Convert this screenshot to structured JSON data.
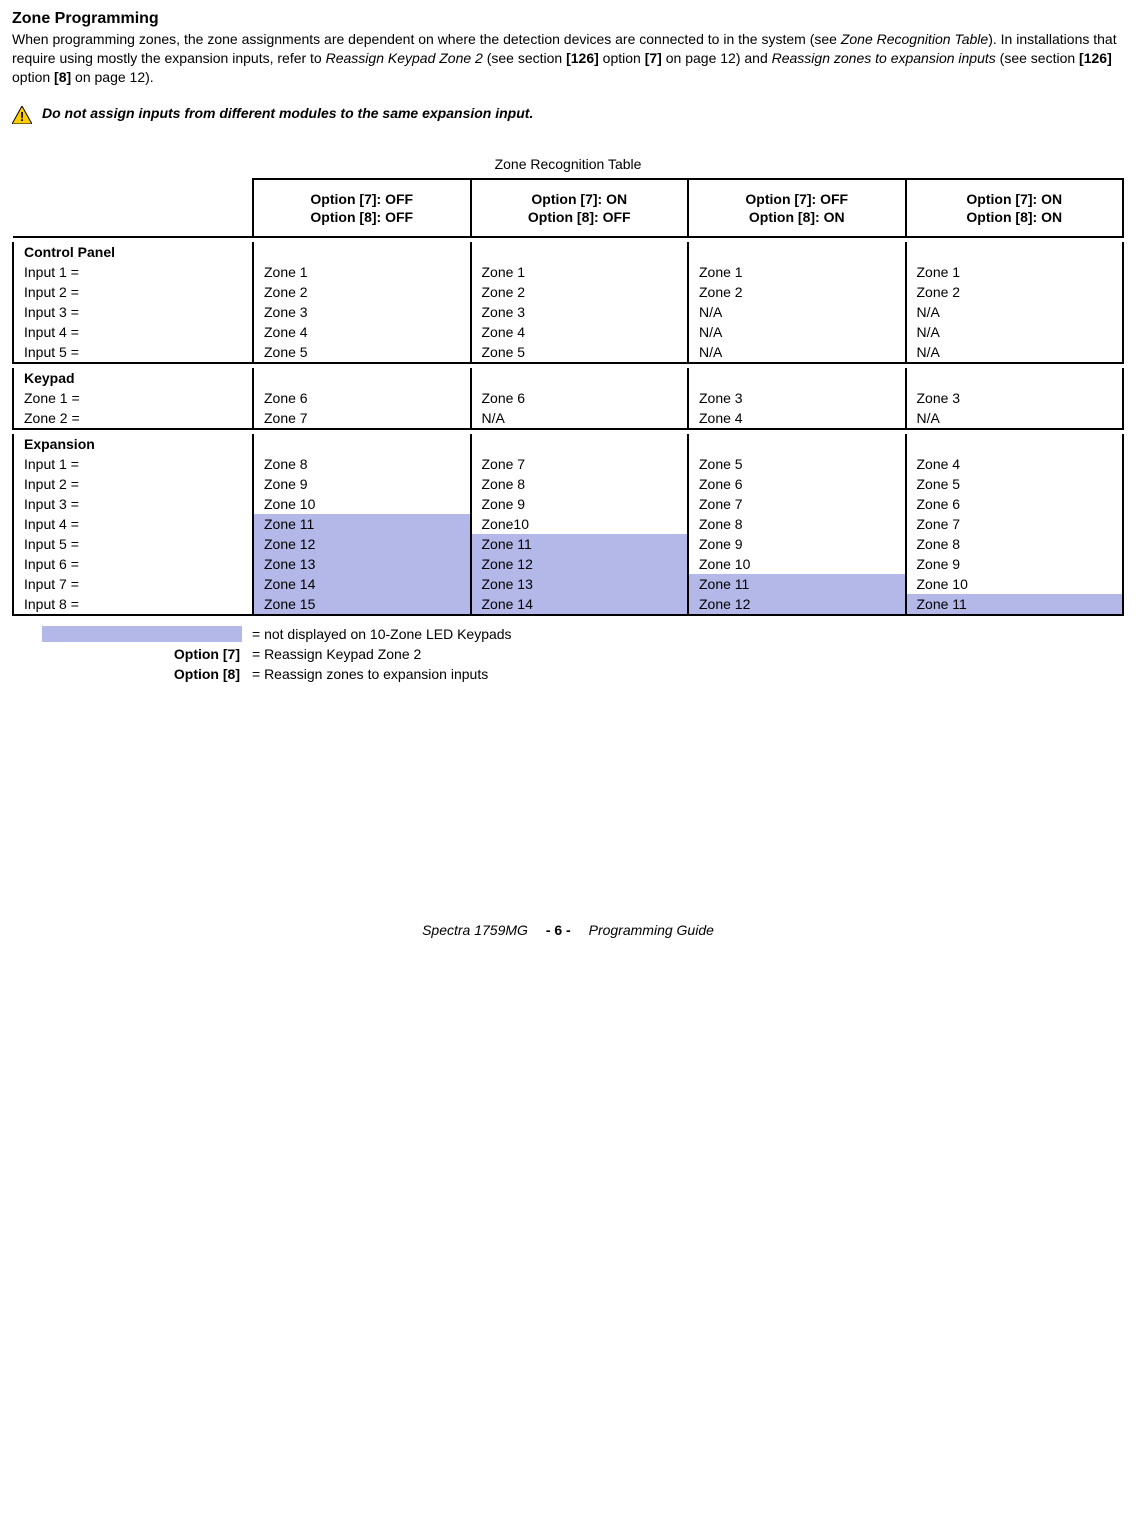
{
  "heading": "Zone Programming",
  "intro": {
    "p1a": "When programming zones, the zone assignments are dependent on where the detection devices are connected to in the system (see ",
    "p1b": "Zone Recognition Table",
    "p1c": "). In installations that require using mostly the expansion inputs, refer to ",
    "p1d": "Reassign Keypad Zone 2",
    "p1e": " (see section ",
    "p1f": "[126]",
    "p1g": " option ",
    "p1h": "[7]",
    "p1i": " on page 12) and ",
    "p1j": "Reassign zones to expansion inputs",
    "p1k": " (see section ",
    "p1l": "[126]",
    "p1m": " option ",
    "p1n": "[8]",
    "p1o": " on page 12)."
  },
  "warning": "Do not assign inputs from different modules to the same expansion input.",
  "table_caption": "Zone Recognition Table",
  "colors": {
    "highlight": "#b4b8e8",
    "border": "#000000"
  },
  "headers": {
    "h1a": "Option [7]: OFF",
    "h1b": "Option [8]: OFF",
    "h2a": "Option [7]: ON",
    "h2b": "Option [8]: OFF",
    "h3a": "Option [7]: OFF",
    "h3b": "Option [8]: ON",
    "h4a": "Option [7]: ON",
    "h4b": "Option [8]: ON"
  },
  "sections": {
    "control": "Control Panel",
    "keypad": "Keypad",
    "expansion": "Expansion"
  },
  "rows": {
    "cp1": {
      "label": "Input 1 =",
      "c1": "Zone 1",
      "c2": "Zone 1",
      "c3": "Zone 1",
      "c4": "Zone 1"
    },
    "cp2": {
      "label": "Input 2 =",
      "c1": "Zone 2",
      "c2": "Zone 2",
      "c3": "Zone 2",
      "c4": "Zone 2"
    },
    "cp3": {
      "label": "Input 3 =",
      "c1": "Zone 3",
      "c2": "Zone 3",
      "c3": "N/A",
      "c4": "N/A"
    },
    "cp4": {
      "label": "Input 4 =",
      "c1": "Zone 4",
      "c2": "Zone 4",
      "c3": "N/A",
      "c4": "N/A"
    },
    "cp5": {
      "label": "Input 5 =",
      "c1": "Zone 5",
      "c2": "Zone 5",
      "c3": "N/A",
      "c4": "N/A"
    },
    "kp1": {
      "label": "Zone 1 =",
      "c1": "Zone 6",
      "c2": "Zone 6",
      "c3": "Zone 3",
      "c4": "Zone 3"
    },
    "kp2": {
      "label": "Zone 2 =",
      "c1": "Zone 7",
      "c2": "N/A",
      "c3": "Zone 4",
      "c4": "N/A"
    },
    "ex1": {
      "label": "Input 1 =",
      "c1": "Zone 8",
      "c2": "Zone 7",
      "c3": "Zone 5",
      "c4": "Zone 4"
    },
    "ex2": {
      "label": "Input 2 =",
      "c1": "Zone 9",
      "c2": "Zone 8",
      "c3": "Zone 6",
      "c4": "Zone 5"
    },
    "ex3": {
      "label": "Input 3 =",
      "c1": "Zone 10",
      "c2": "Zone 9",
      "c3": "Zone 7",
      "c4": "Zone 6"
    },
    "ex4": {
      "label": "Input 4 =",
      "c1": "Zone 11",
      "c2": "Zone10",
      "c3": "Zone 8",
      "c4": "Zone 7"
    },
    "ex5": {
      "label": "Input 5 =",
      "c1": "Zone 12",
      "c2": "Zone 11",
      "c3": "Zone 9",
      "c4": "Zone 8"
    },
    "ex6": {
      "label": "Input 6 =",
      "c1": "Zone 13",
      "c2": "Zone 12",
      "c3": "Zone 10",
      "c4": "Zone 9"
    },
    "ex7": {
      "label": "Input 7 =",
      "c1": "Zone 14",
      "c2": "Zone 13",
      "c3": "Zone 11",
      "c4": "Zone 10"
    },
    "ex8": {
      "label": "Input 8 =",
      "c1": "Zone 15",
      "c2": "Zone 14",
      "c3": "Zone 12",
      "c4": "Zone 11"
    }
  },
  "highlights": {
    "ex4": {
      "c1": true
    },
    "ex5": {
      "c1": true,
      "c2": true
    },
    "ex6": {
      "c1": true,
      "c2": true
    },
    "ex7": {
      "c1": true,
      "c2": true,
      "c3": true
    },
    "ex8": {
      "c1": true,
      "c2": true,
      "c3": true,
      "c4": true
    }
  },
  "legend": {
    "swatch_text": "= not displayed on 10-Zone LED Keypads",
    "opt7_label": "Option [7]",
    "opt7_text": "= Reassign Keypad Zone 2",
    "opt8_label": "Option [8]",
    "opt8_text": "= Reassign zones to expansion inputs"
  },
  "footer": {
    "left": "Spectra 1759MG",
    "page": "- 6 -",
    "right": "Programming Guide"
  }
}
